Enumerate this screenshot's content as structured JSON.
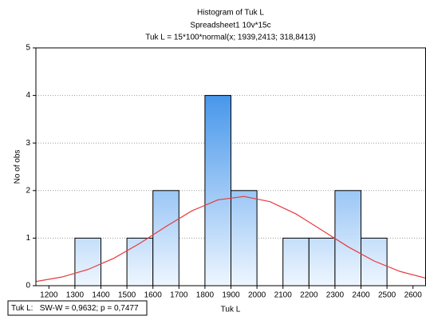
{
  "chart_data": {
    "type": "histogram",
    "title": "Histogram of Tuk L",
    "subtitle": "Spreadsheet1 10v*15c",
    "formula": "Tuk L = 15*100*normal(x; 1939,2413; 318,8413)",
    "x_label": "Tuk L",
    "y_label": "No of obs",
    "annotation": "Tuk L:   SW-W = 0,9632; p = 0,7477",
    "bins": [
      1300,
      1400,
      1500,
      1600,
      1700,
      1800,
      1900,
      2000,
      2100,
      2200,
      2300,
      2400,
      2500
    ],
    "values": [
      1,
      0,
      1,
      2,
      0,
      4,
      2,
      0,
      1,
      1,
      2,
      1
    ],
    "color": "#1e7fe6",
    "curve": {
      "color": "#e8393c",
      "x": [
        1150,
        1250,
        1350,
        1450,
        1550,
        1650,
        1750,
        1850,
        1950,
        2050,
        2150,
        2250,
        2350,
        2450,
        2550,
        2650
      ],
      "values": [
        0.088,
        0.182,
        0.34,
        0.578,
        0.891,
        1.244,
        1.574,
        1.805,
        1.876,
        1.767,
        1.509,
        1.167,
        0.819,
        0.52,
        0.3,
        0.157
      ]
    },
    "xlim": [
      1150,
      2650
    ],
    "ylim": [
      0,
      5
    ],
    "xticks": [
      1200,
      1300,
      1400,
      1500,
      1600,
      1700,
      1800,
      1900,
      2000,
      2100,
      2200,
      2300,
      2400,
      2500,
      2600
    ],
    "yticks": [
      0,
      1,
      2,
      3,
      4,
      5
    ],
    "grid": true
  }
}
